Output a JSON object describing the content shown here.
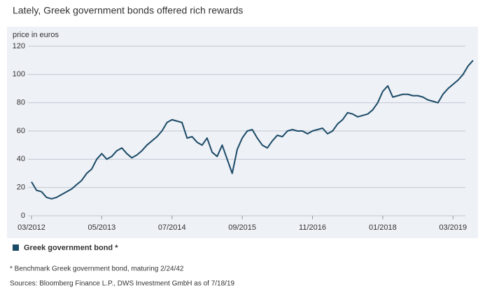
{
  "chart_data": {
    "type": "line",
    "title": "Lately, Greek government bonds offered rich rewards",
    "y_label": "price in euros",
    "x": [
      "03/2012",
      "04/2012",
      "05/2012",
      "06/2012",
      "07/2012",
      "08/2012",
      "09/2012",
      "10/2012",
      "11/2012",
      "12/2012",
      "01/2013",
      "02/2013",
      "03/2013",
      "04/2013",
      "05/2013",
      "06/2013",
      "07/2013",
      "08/2013",
      "09/2013",
      "10/2013",
      "11/2013",
      "12/2013",
      "01/2014",
      "02/2014",
      "03/2014",
      "04/2014",
      "05/2014",
      "06/2014",
      "07/2014",
      "08/2014",
      "09/2014",
      "10/2014",
      "11/2014",
      "12/2014",
      "01/2015",
      "02/2015",
      "03/2015",
      "04/2015",
      "05/2015",
      "06/2015",
      "07/2015",
      "08/2015",
      "09/2015",
      "10/2015",
      "11/2015",
      "12/2015",
      "01/2016",
      "02/2016",
      "03/2016",
      "04/2016",
      "05/2016",
      "06/2016",
      "07/2016",
      "08/2016",
      "09/2016",
      "10/2016",
      "11/2016",
      "12/2016",
      "01/2017",
      "02/2017",
      "03/2017",
      "04/2017",
      "05/2017",
      "06/2017",
      "07/2017",
      "08/2017",
      "09/2017",
      "10/2017",
      "11/2017",
      "12/2017",
      "01/2018",
      "02/2018",
      "03/2018",
      "04/2018",
      "05/2018",
      "06/2018",
      "07/2018",
      "08/2018",
      "09/2018",
      "10/2018",
      "11/2018",
      "12/2018",
      "01/2019",
      "02/2019",
      "03/2019",
      "04/2019",
      "05/2019",
      "06/2019",
      "07/2019"
    ],
    "series": [
      {
        "name": "Greek government bond *",
        "color": "#1b4a66",
        "values": [
          24,
          18,
          17,
          13,
          12,
          13,
          15,
          17,
          19,
          22,
          25,
          30,
          33,
          40,
          44,
          40,
          42,
          46,
          48,
          44,
          41,
          43,
          46,
          50,
          53,
          56,
          60,
          66,
          68,
          67,
          66,
          55,
          56,
          52,
          50,
          55,
          45,
          42,
          50,
          40,
          30,
          47,
          55,
          60,
          61,
          55,
          50,
          48,
          53,
          57,
          56,
          60,
          61,
          60,
          60,
          58,
          60,
          61,
          62,
          58,
          60,
          65,
          68,
          73,
          72,
          70,
          71,
          72,
          75,
          80,
          88,
          92,
          84,
          85,
          86,
          86,
          85,
          85,
          84,
          82,
          81,
          80,
          86,
          90,
          93,
          96,
          100,
          106,
          110
        ]
      }
    ],
    "xticks": [
      "03/2012",
      "05/2013",
      "07/2014",
      "09/2015",
      "11/2016",
      "01/2018",
      "03/2019"
    ],
    "ylim": [
      0,
      120
    ],
    "yticks": [
      0,
      20,
      40,
      60,
      80,
      100,
      120
    ],
    "grid": true,
    "notes": [
      "* Benchmark Greek government bond, maturing 2/24/42",
      "Sources: Bloomberg Finance L.P., DWS Investment GmbH as of 7/18/19"
    ]
  }
}
